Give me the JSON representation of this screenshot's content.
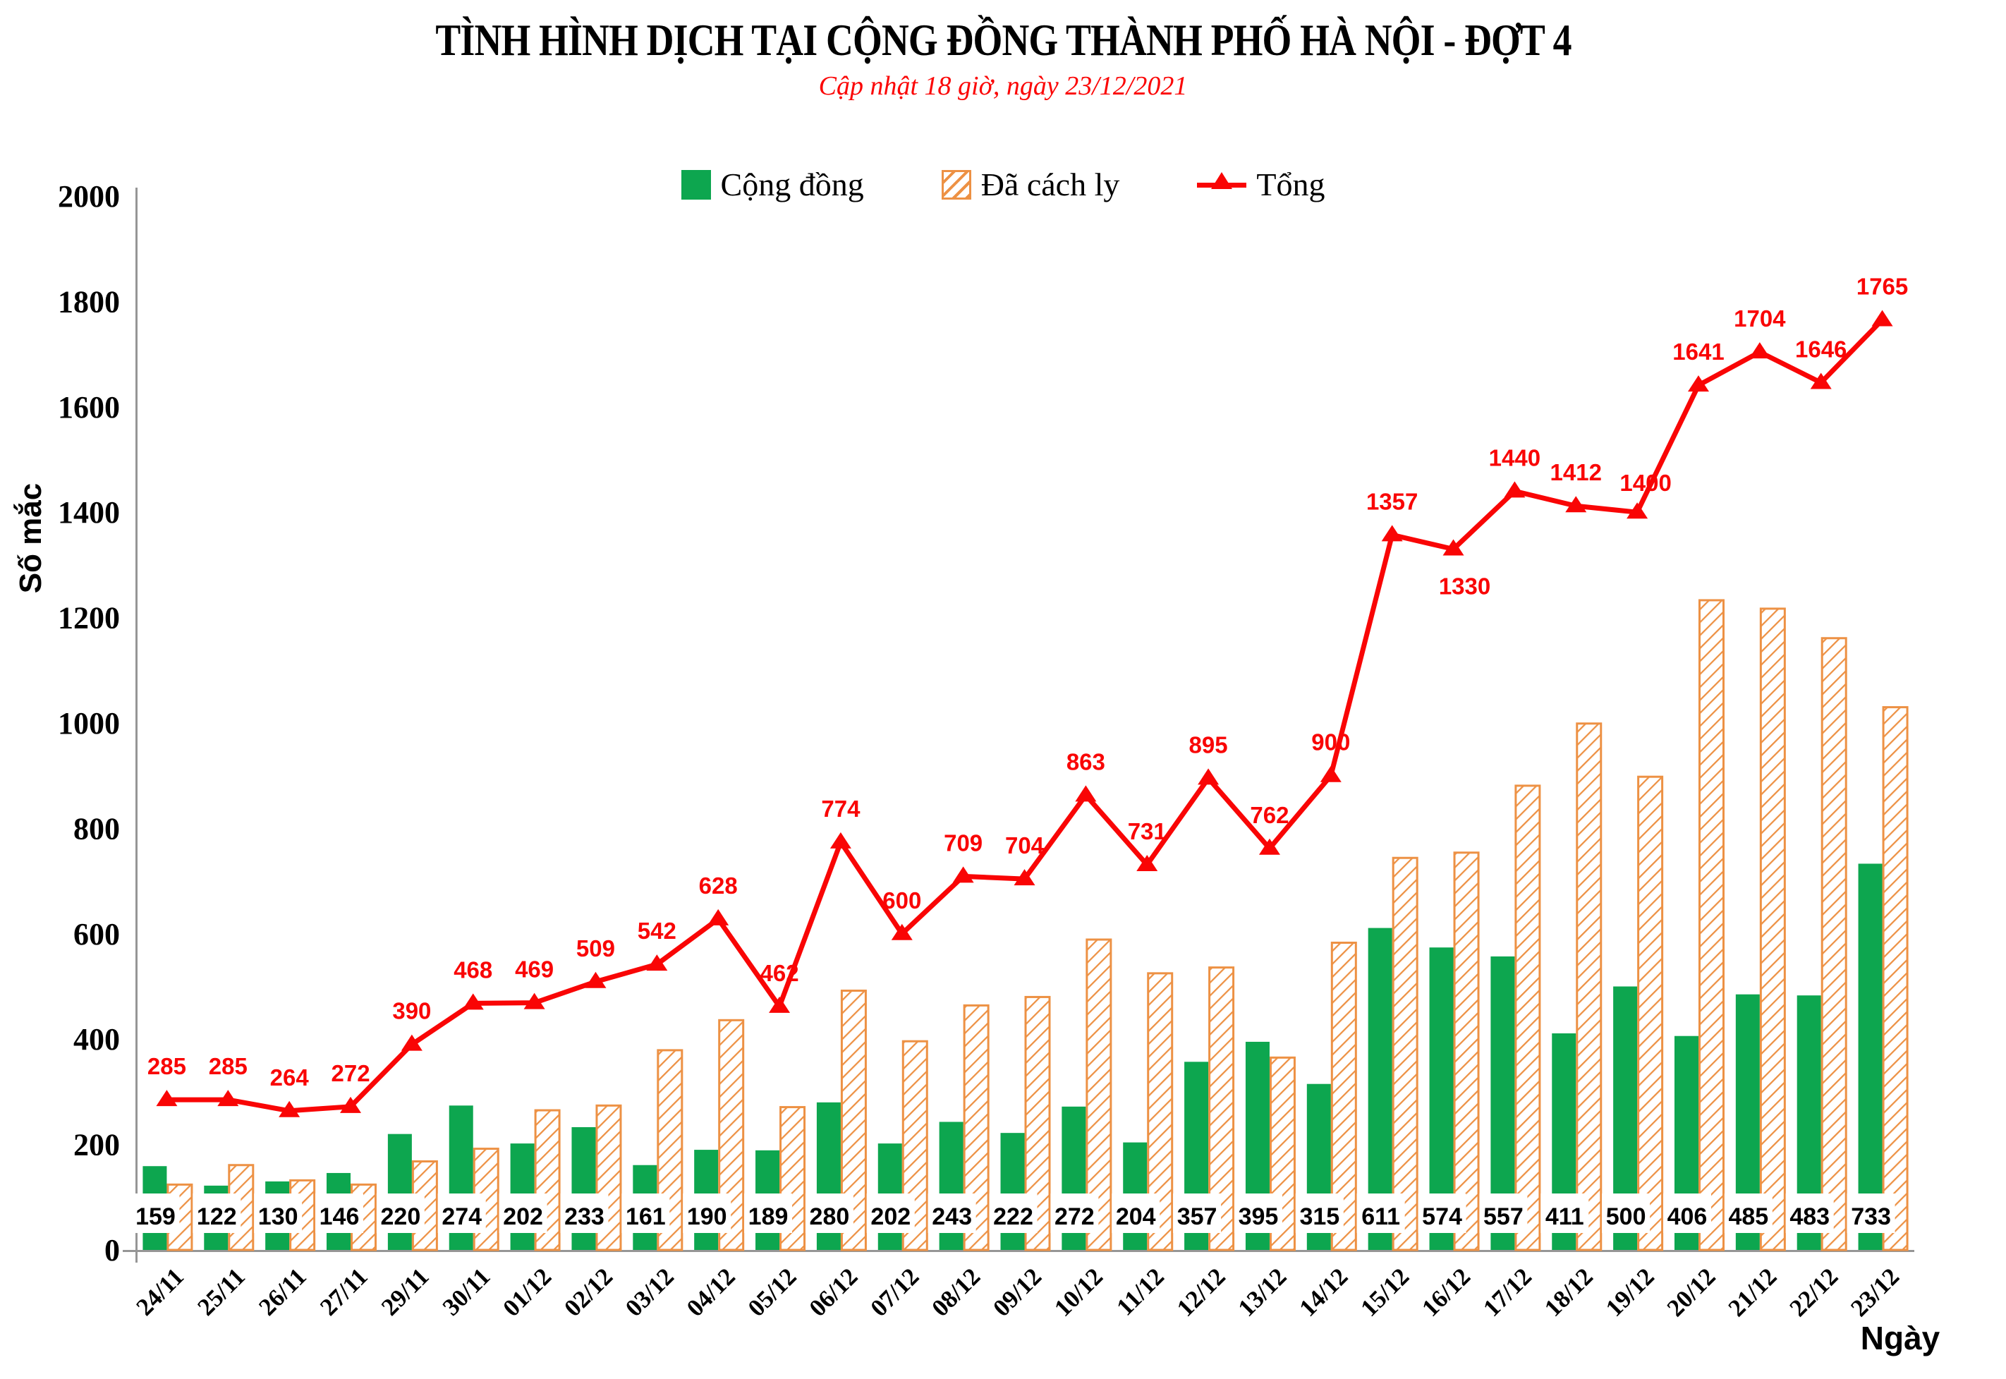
{
  "header": {
    "title": "TÌNH HÌNH DỊCH TẠI CỘNG ĐỒNG THÀNH PHỐ HÀ NỘI - ĐỢT 4",
    "subtitle": "Cập nhật 18 giờ, ngày 23/12/2021"
  },
  "colors": {
    "community_green": "#0da64f",
    "quarantined_orange": "#ed9144",
    "total_red": "#f90505",
    "axis_gray": "#969696",
    "subtitle_red": "#fb0505",
    "text_black": "#000000"
  },
  "chart_data": {
    "type": "bar",
    "title": "TÌNH HÌNH DỊCH TẠI CỘNG ĐỒNG THÀNH PHỐ HÀ NỘI - ĐỢT 4",
    "subtitle": "Cập nhật 18 giờ, ngày 23/12/2021",
    "xlabel": "Ngày",
    "ylabel": "Số mắc",
    "ylim": [
      0,
      2000
    ],
    "ytick_step": 200,
    "y_ticks": [
      0,
      200,
      400,
      600,
      800,
      1000,
      1200,
      1400,
      1600,
      1800,
      2000
    ],
    "grid": false,
    "legend_position": "top",
    "bar_value_labels_position": "inside-base",
    "line_value_labels_position": "above-markers",
    "categories": [
      "24/11",
      "25/11",
      "26/11",
      "27/11",
      "29/11",
      "30/11",
      "01/12",
      "02/12",
      "03/12",
      "04/12",
      "05/12",
      "06/12",
      "07/12",
      "08/12",
      "09/12",
      "10/12",
      "11/12",
      "12/12",
      "13/12",
      "14/12",
      "15/12",
      "16/12",
      "17/12",
      "18/12",
      "19/12",
      "20/12",
      "21/12",
      "22/12",
      "23/12"
    ],
    "series": [
      {
        "name": "Cộng đồng",
        "type": "bar",
        "style": "solid",
        "color": "#0da64f",
        "values": [
          159,
          122,
          130,
          146,
          220,
          274,
          202,
          233,
          161,
          190,
          189,
          280,
          202,
          243,
          222,
          272,
          204,
          357,
          395,
          315,
          611,
          574,
          557,
          411,
          500,
          406,
          485,
          483,
          733
        ]
      },
      {
        "name": "Đã cách ly",
        "type": "bar",
        "style": "diagonal-hatch",
        "color": "#ed9144",
        "values": [
          126,
          163,
          134,
          126,
          170,
          194,
          267,
          276,
          381,
          438,
          273,
          494,
          398,
          466,
          482,
          591,
          527,
          538,
          367,
          585,
          746,
          756,
          883,
          1001,
          900,
          1235,
          1219,
          1163,
          1032
        ]
      },
      {
        "name": "Tổng",
        "type": "line",
        "marker": "triangle",
        "color": "#f90505",
        "values": [
          285,
          285,
          264,
          272,
          390,
          468,
          469,
          509,
          542,
          628,
          462,
          774,
          600,
          709,
          704,
          863,
          731,
          895,
          762,
          900,
          1357,
          1330,
          1440,
          1412,
          1400,
          1641,
          1704,
          1646,
          1765
        ]
      }
    ]
  }
}
